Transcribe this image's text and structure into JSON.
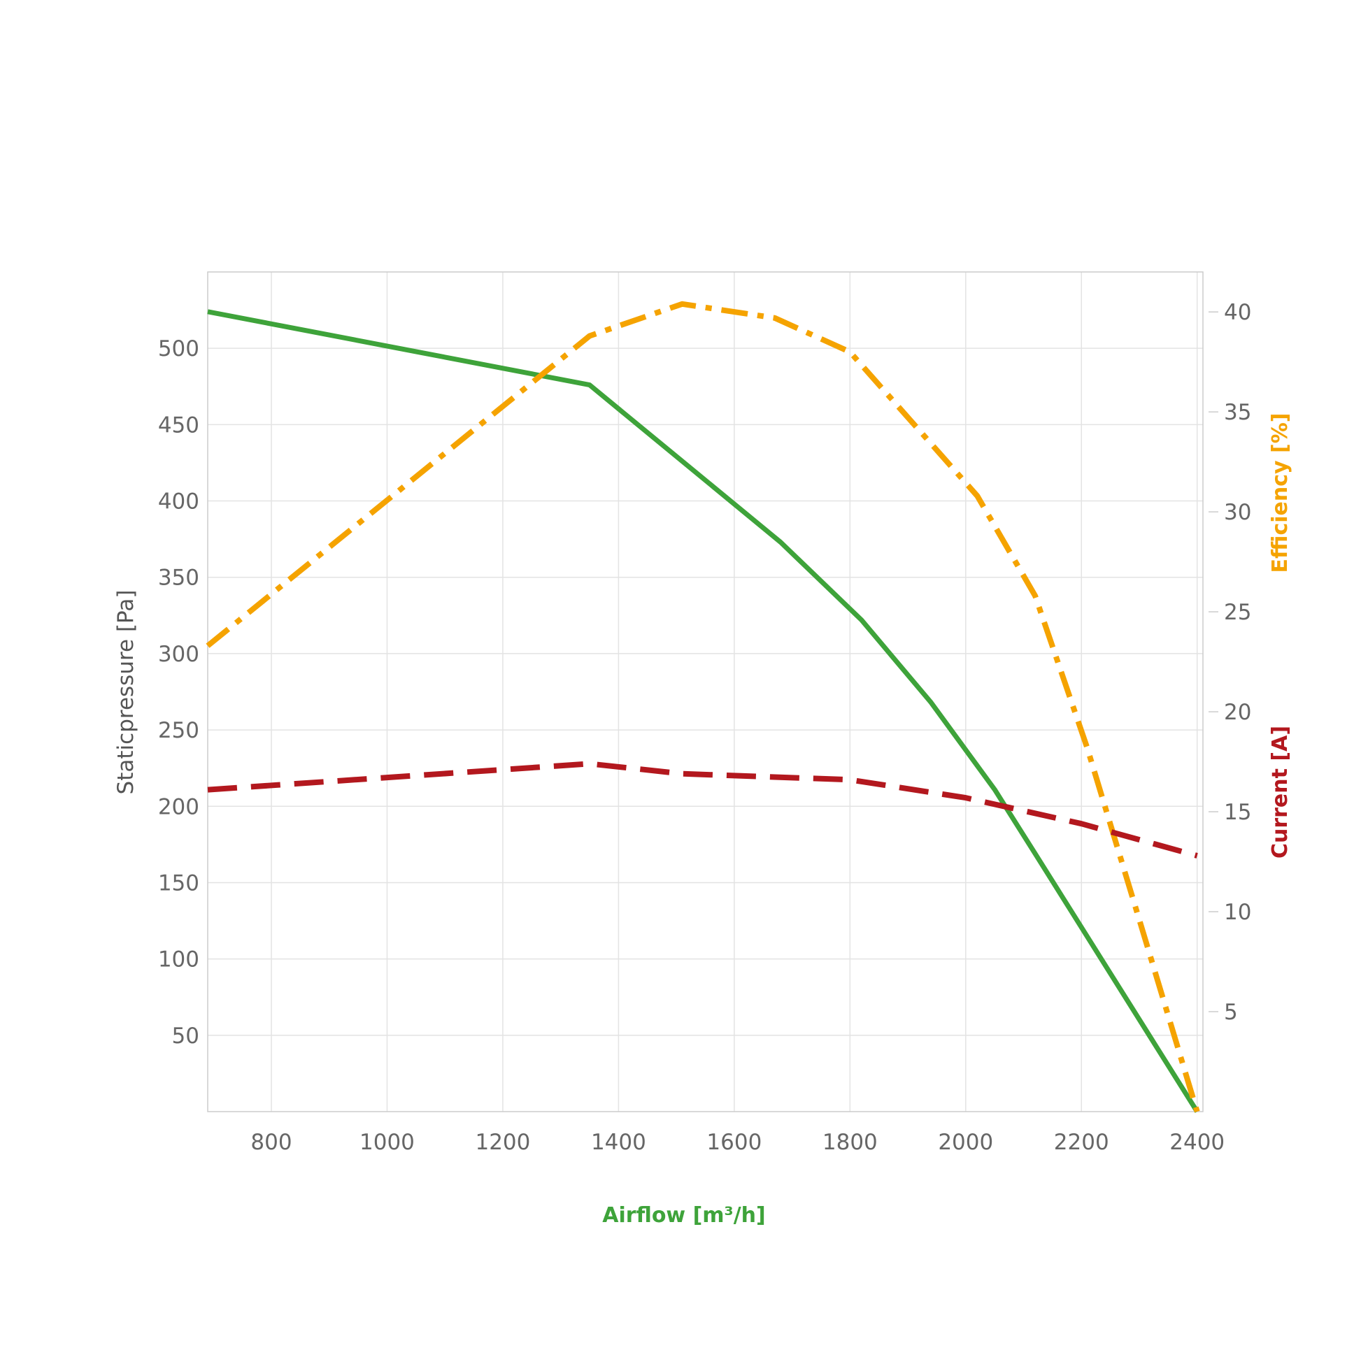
{
  "chart_data": {
    "type": "line",
    "xlabel": "Airflow [m³/h]",
    "ylabel_left": "Staticpressure [Pa]",
    "ylabel_right_efficiency": "Efficiency [%]",
    "ylabel_right_current": "Current [A]",
    "xlim": [
      690,
      2410
    ],
    "ylim_left": [
      0,
      550
    ],
    "ylim_right": [
      0,
      42
    ],
    "x_ticks": [
      800,
      1000,
      1200,
      1400,
      1600,
      1800,
      2000,
      2200,
      2400
    ],
    "y_left_ticks": [
      50,
      100,
      150,
      200,
      250,
      300,
      350,
      400,
      450,
      500
    ],
    "y_right_ticks": [
      5,
      10,
      15,
      20,
      25,
      30,
      35,
      40
    ],
    "grid": true,
    "colors": {
      "pressure": "#3ea33a",
      "efficiency": "#f5a300",
      "current": "#b3181e",
      "grid": "#e3e3e3",
      "frame": "#cccccc",
      "tick_text": "#666666"
    },
    "series": [
      {
        "key": "pressure",
        "axis": "left",
        "style": "solid",
        "x": [
          690,
          1350,
          1680,
          1820,
          1940,
          2050,
          2120,
          2400
        ],
        "y": [
          524,
          476,
          373,
          322,
          268,
          211,
          169,
          0
        ]
      },
      {
        "key": "efficiency",
        "axis": "right",
        "style": "dashdot",
        "x": [
          690,
          1350,
          1510,
          1670,
          1800,
          2020,
          2120,
          2210,
          2300,
          2400
        ],
        "y": [
          23.3,
          38.8,
          40.4,
          39.7,
          38.0,
          30.8,
          25.8,
          18.2,
          9.6,
          0
        ]
      },
      {
        "key": "current",
        "axis": "right",
        "style": "dashed",
        "x": [
          690,
          1350,
          1510,
          1800,
          2000,
          2200,
          2400
        ],
        "y": [
          16.1,
          17.4,
          16.9,
          16.6,
          15.7,
          14.4,
          12.8
        ]
      }
    ]
  }
}
